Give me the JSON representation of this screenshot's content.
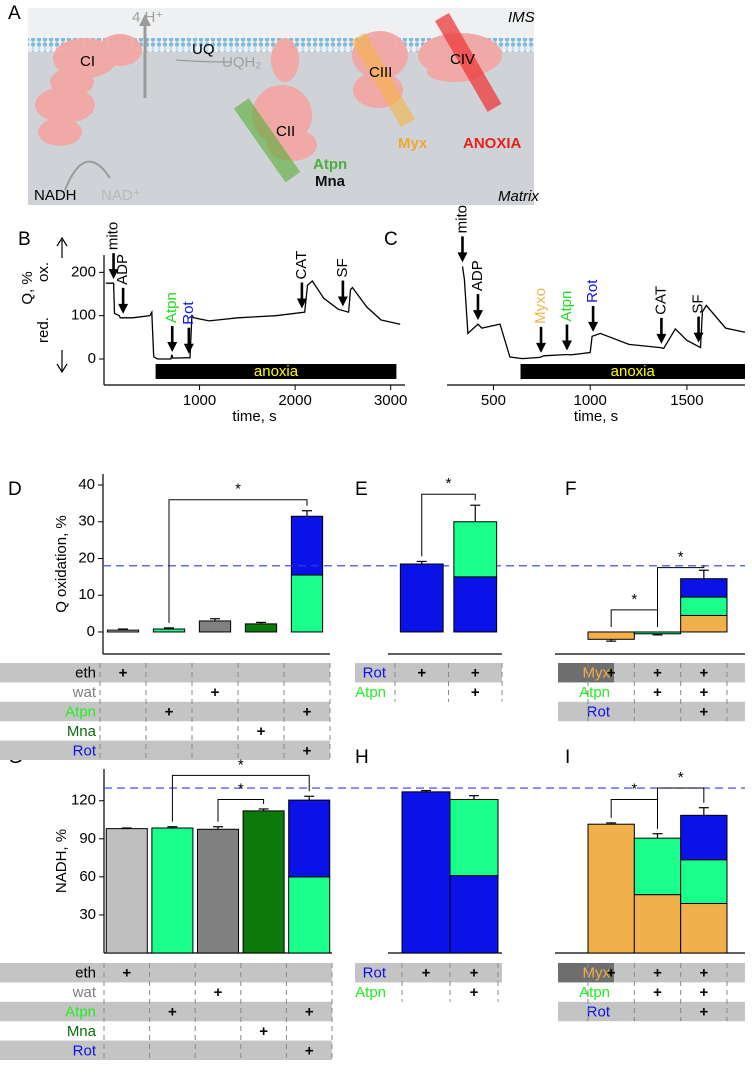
{
  "panel_labels": [
    "A",
    "B",
    "C",
    "D",
    "E",
    "F",
    "G",
    "H",
    "I"
  ],
  "diagram": {
    "ims": "IMS",
    "matrix": "Matrix",
    "protons": "4 H⁺",
    "ci": "CI",
    "uq": "UQ",
    "uqh2": "UQH₂",
    "cii": "CII",
    "ciii": "CIII",
    "civ": "CIV",
    "atpn": "Atpn",
    "mna": "Mna",
    "myx": "Myx",
    "anoxia": "ANOXIA",
    "nadh": "NADH",
    "nad": "NAD⁺"
  },
  "chart_data": [
    {
      "type": "line",
      "ylabel": "Q, %",
      "ylabel_up": "ox.",
      "ylabel_down": "red.",
      "xlabel": "time, s",
      "color": "#000000",
      "x": [
        20,
        100,
        110,
        160,
        170,
        300,
        480,
        500,
        520,
        560,
        700,
        710,
        720,
        900,
        920,
        940,
        1100,
        1400,
        1800,
        2100,
        2130,
        2180,
        2300,
        2450,
        2560,
        2580,
        2600,
        2750,
        2900,
        3100
      ],
      "values": [
        175,
        175,
        105,
        100,
        95,
        95,
        100,
        108,
        5,
        0,
        0,
        10,
        2,
        3,
        100,
        95,
        88,
        95,
        100,
        108,
        170,
        180,
        140,
        115,
        108,
        160,
        165,
        120,
        90,
        80
      ],
      "xlim": [
        0,
        3150
      ],
      "ylim": [
        -60,
        240
      ],
      "xticks": [
        1000,
        2000,
        3000
      ],
      "yticks": [
        0,
        100,
        200
      ],
      "annotations": [
        {
          "text": "mito",
          "x": 100,
          "color": "#000000"
        },
        {
          "text": "ADP",
          "x": 200,
          "color": "#000000"
        },
        {
          "text": "Atpn",
          "x": 714,
          "color": "#22dd22"
        },
        {
          "text": "Rot",
          "x": 888,
          "color": "#0a12e8"
        },
        {
          "text": "CAT",
          "x": 2071,
          "color": "#000000"
        },
        {
          "text": "SF",
          "x": 2500,
          "color": "#000000"
        }
      ],
      "period": {
        "text": "anoxia",
        "from": 540,
        "to": 3060,
        "color": "#000000",
        "text_color": "#ffff00"
      }
    },
    {
      "type": "line",
      "xlabel": "time, s",
      "color": "#000000",
      "x": [
        340,
        350,
        368,
        420,
        440,
        534,
        585,
        650,
        740,
        760,
        880,
        900,
        1000,
        1010,
        1052,
        1200,
        1363,
        1380,
        1440,
        1500,
        1570,
        1580,
        1600,
        1700,
        1800
      ],
      "values": [
        232,
        200,
        67,
        90,
        80,
        90,
        9,
        5,
        8,
        12,
        15,
        14,
        20,
        60,
        67,
        40,
        32,
        30,
        78,
        50,
        32,
        120,
        136,
        80,
        70
      ],
      "xlim": [
        260,
        1800
      ],
      "ylim": [
        -60,
        260
      ],
      "xticks": [
        500,
        1000,
        1500
      ],
      "annotations": [
        {
          "text": "mito",
          "x": 340,
          "color": "#000000"
        },
        {
          "text": "ADP",
          "x": 420,
          "color": "#000000"
        },
        {
          "text": "Myxo",
          "x": 746,
          "color": "#f2b04a"
        },
        {
          "text": "Atpn",
          "x": 880,
          "color": "#22dd22"
        },
        {
          "text": "Rot",
          "x": 1015,
          "color": "#0a12e8"
        },
        {
          "text": "CAT",
          "x": 1368,
          "color": "#000000"
        },
        {
          "text": "SF",
          "x": 1560,
          "color": "#000000"
        }
      ],
      "period": {
        "text": "anoxia",
        "from": 640,
        "to": 1800,
        "color": "#000000",
        "text_color": "#ffff00"
      }
    },
    {
      "type": "bar",
      "ylabel": "Q oxidation, %",
      "ylim": [
        -6,
        43
      ],
      "yticks": [
        0,
        10,
        20,
        30,
        40
      ],
      "reference_line": 18,
      "reference_color": "#2a3cf0",
      "bars": [
        {
          "segments": [
            {
              "value": 0.5,
              "color": "#bfbfbf"
            }
          ],
          "error": 0.3
        },
        {
          "segments": [
            {
              "value": 0.8,
              "color": "#1aff8c"
            }
          ],
          "error": 0.3
        },
        {
          "segments": [
            {
              "value": 3.0,
              "color": "#808080"
            }
          ],
          "error": 0.6
        },
        {
          "segments": [
            {
              "value": 2.2,
              "color": "#0b7a0b"
            }
          ],
          "error": 0.4
        },
        {
          "segments": [
            {
              "value": 15.5,
              "color": "#1aff8c"
            },
            {
              "value": 16,
              "color": "#0a12e8"
            }
          ],
          "error": 1.5
        }
      ],
      "brackets": [
        {
          "bars": [
            1,
            4
          ],
          "level": 36,
          "label": "*"
        }
      ],
      "table": {
        "rows": [
          {
            "label": "eth",
            "color": "#000000",
            "marks": [
              "+",
              null,
              null,
              null,
              null
            ]
          },
          {
            "label": "wat",
            "color": "#808080",
            "marks": [
              null,
              null,
              "+",
              null,
              null
            ]
          },
          {
            "label": "Atpn",
            "color": "#22ee22",
            "marks": [
              null,
              "+",
              null,
              null,
              "+"
            ]
          },
          {
            "label": "Mna",
            "color": "#0b6b0b",
            "marks": [
              null,
              null,
              null,
              "+",
              null
            ]
          },
          {
            "label": "Rot",
            "color": "#0a12e8",
            "marks": [
              null,
              null,
              null,
              null,
              "+"
            ]
          }
        ]
      }
    },
    {
      "type": "bar",
      "ylim": [
        -6,
        43
      ],
      "bars": [
        {
          "segments": [
            {
              "value": 18.5,
              "color": "#0a12e8"
            }
          ],
          "error": 0.7
        },
        {
          "segments": [
            {
              "value": 15,
              "color": "#0a12e8"
            },
            {
              "value": 15,
              "color": "#1aff8c"
            }
          ],
          "error": 4.5
        }
      ],
      "brackets": [
        {
          "bars": [
            0,
            1
          ],
          "level": 37.5,
          "label": "*"
        }
      ],
      "table": {
        "rows": [
          {
            "label": "Rot",
            "color": "#0a12e8",
            "marks": [
              "+",
              "+"
            ]
          },
          {
            "label": "Atpn",
            "color": "#22ee22",
            "marks": [
              null,
              "+"
            ]
          }
        ]
      }
    },
    {
      "type": "bar",
      "ylim": [
        -6,
        43
      ],
      "bars": [
        {
          "segments": [
            {
              "value": -2,
              "color": "#f2b04a"
            }
          ],
          "error": 0.5
        },
        {
          "segments": [
            {
              "value": -0.5,
              "color": "#1aff8c"
            }
          ],
          "error": 0.3
        },
        {
          "segments": [
            {
              "value": 4.5,
              "color": "#f2b04a"
            },
            {
              "value": 5,
              "color": "#1aff8c"
            },
            {
              "value": 5,
              "color": "#0a12e8"
            }
          ],
          "error": 2.3
        }
      ],
      "brackets": [
        {
          "bars": [
            0,
            1
          ],
          "level": 6,
          "label": "*"
        },
        {
          "bars": [
            1,
            2
          ],
          "level": 17.5,
          "label": "*"
        }
      ],
      "table": {
        "rows": [
          {
            "label": "Myx",
            "color": "#f2b04a",
            "background": "#6e6e6e",
            "marks": [
              "+",
              "+",
              "+"
            ]
          },
          {
            "label": "Atpn",
            "color": "#22ee22",
            "marks": [
              null,
              "+",
              "+"
            ]
          },
          {
            "label": "Rot",
            "color": "#0a12e8",
            "marks": [
              null,
              null,
              "+"
            ]
          }
        ]
      }
    },
    {
      "type": "bar",
      "ylabel": "NADH, %",
      "ylim": [
        0,
        145
      ],
      "yticks": [
        30,
        60,
        90,
        120
      ],
      "reference_line": 130,
      "reference_color": "#2a3cf0",
      "bars": [
        {
          "segments": [
            {
              "value": 98,
              "color": "#bfbfbf"
            }
          ],
          "error": 0.5
        },
        {
          "segments": [
            {
              "value": 98.5,
              "color": "#1aff8c"
            }
          ],
          "error": 1
        },
        {
          "segments": [
            {
              "value": 97.5,
              "color": "#808080"
            }
          ],
          "error": 2
        },
        {
          "segments": [
            {
              "value": 112,
              "color": "#0b7a0b"
            }
          ],
          "error": 1.5
        },
        {
          "segments": [
            {
              "value": 60,
              "color": "#1aff8c"
            },
            {
              "value": 60.5,
              "color": "#0a12e8"
            }
          ],
          "error": 3
        }
      ],
      "brackets": [
        {
          "bars": [
            1,
            4
          ],
          "level": 140,
          "label": "*"
        },
        {
          "bars": [
            2,
            3
          ],
          "level": 121,
          "label": "*"
        }
      ],
      "table": {
        "rows": [
          {
            "label": "eth",
            "color": "#000000",
            "marks": [
              "+",
              null,
              null,
              null,
              null
            ]
          },
          {
            "label": "wat",
            "color": "#808080",
            "marks": [
              null,
              null,
              "+",
              null,
              null
            ]
          },
          {
            "label": "Atpn",
            "color": "#22ee22",
            "marks": [
              null,
              "+",
              null,
              null,
              "+"
            ]
          },
          {
            "label": "Mna",
            "color": "#0b6b0b",
            "marks": [
              null,
              null,
              null,
              "+",
              null
            ]
          },
          {
            "label": "Rot",
            "color": "#0a12e8",
            "marks": [
              null,
              null,
              null,
              null,
              "+"
            ]
          }
        ]
      }
    },
    {
      "type": "bar",
      "ylim": [
        0,
        145
      ],
      "bars": [
        {
          "segments": [
            {
              "value": 127,
              "color": "#0a12e8"
            }
          ],
          "error": 1
        },
        {
          "segments": [
            {
              "value": 61,
              "color": "#0a12e8"
            },
            {
              "value": 60,
              "color": "#1aff8c"
            }
          ],
          "error": 3
        }
      ],
      "table": {
        "rows": [
          {
            "label": "Rot",
            "color": "#0a12e8",
            "marks": [
              "+",
              "+"
            ]
          },
          {
            "label": "Atpn",
            "color": "#22ee22",
            "marks": [
              null,
              "+"
            ]
          }
        ]
      }
    },
    {
      "type": "bar",
      "ylim": [
        0,
        145
      ],
      "bars": [
        {
          "segments": [
            {
              "value": 101.5,
              "color": "#f2b04a"
            }
          ],
          "error": 1
        },
        {
          "segments": [
            {
              "value": 46,
              "color": "#f2b04a"
            },
            {
              "value": 44.5,
              "color": "#1aff8c"
            }
          ],
          "error": 3.5
        },
        {
          "segments": [
            {
              "value": 39,
              "color": "#f2b04a"
            },
            {
              "value": 34.5,
              "color": "#1aff8c"
            },
            {
              "value": 35,
              "color": "#0a12e8"
            }
          ],
          "error": 6
        }
      ],
      "brackets": [
        {
          "bars": [
            0,
            1
          ],
          "level": 121,
          "label": "*"
        },
        {
          "bars": [
            1,
            2
          ],
          "level": 130,
          "label": "*"
        }
      ],
      "table": {
        "rows": [
          {
            "label": "Myx",
            "color": "#f2b04a",
            "background": "#6e6e6e",
            "marks": [
              "+",
              "+",
              "+"
            ]
          },
          {
            "label": "Atpn",
            "color": "#22ee22",
            "marks": [
              null,
              "+",
              "+"
            ]
          },
          {
            "label": "Rot",
            "color": "#0a12e8",
            "marks": [
              null,
              null,
              "+"
            ]
          }
        ]
      }
    }
  ]
}
